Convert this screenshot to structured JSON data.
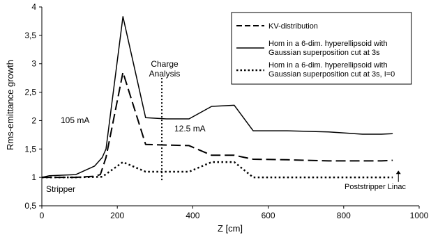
{
  "chart_data": {
    "type": "line",
    "xlabel": "Z [cm]",
    "ylabel": "Rms-emittance growth",
    "xlim": [
      0,
      1000
    ],
    "ylim": [
      0.5,
      4
    ],
    "x_ticks": [
      "0",
      "200",
      "400",
      "600",
      "800",
      "1000"
    ],
    "y_ticks": [
      "0,5",
      "1",
      "1,5",
      "2",
      "2,5",
      "3",
      "3,5",
      "4"
    ],
    "grid": false,
    "legend_placement": "top-right",
    "series": [
      {
        "name": "KV-distribution",
        "style": "dashed",
        "x": [
          0,
          20,
          90,
          140,
          155,
          170,
          215,
          275,
          330,
          390,
          450,
          510,
          560,
          650,
          760,
          850,
          900,
          930
        ],
        "y": [
          1.0,
          1.0,
          1.0,
          1.02,
          1.05,
          1.35,
          2.85,
          1.58,
          1.57,
          1.56,
          1.39,
          1.39,
          1.32,
          1.31,
          1.29,
          1.29,
          1.29,
          1.3
        ]
      },
      {
        "name": "Hom in a 6-dim. hyperellipsoid with Gaussian superposition cut at 3s",
        "style": "solid",
        "x": [
          0,
          20,
          90,
          140,
          160,
          170,
          215,
          275,
          330,
          390,
          450,
          510,
          560,
          650,
          760,
          850,
          900,
          930
        ],
        "y": [
          1.0,
          1.03,
          1.05,
          1.2,
          1.35,
          1.5,
          3.83,
          2.05,
          2.03,
          2.03,
          2.25,
          2.27,
          1.82,
          1.82,
          1.8,
          1.76,
          1.76,
          1.77
        ]
      },
      {
        "name": "Hom in a 6-dim. hyperellipsoid with Gaussian superposition cut at 3s, I=0",
        "style": "dotted",
        "x": [
          0,
          20,
          90,
          160,
          215,
          275,
          330,
          390,
          450,
          510,
          560,
          650,
          760,
          850,
          930
        ],
        "y": [
          1.0,
          1.0,
          1.0,
          1.01,
          1.27,
          1.1,
          1.1,
          1.1,
          1.27,
          1.27,
          1.0,
          1.0,
          1.0,
          1.0,
          1.0
        ]
      }
    ],
    "annotations": {
      "charge_analysis": {
        "text_line1": "Charge",
        "text_line2": "Analysis",
        "x": 318
      },
      "current_105": {
        "text": "105 mA"
      },
      "current_125": {
        "text": "12.5 mA"
      },
      "stripper": {
        "text": "Stripper"
      },
      "poststripper": {
        "text": "Poststripper Linac",
        "x": 945
      }
    }
  }
}
